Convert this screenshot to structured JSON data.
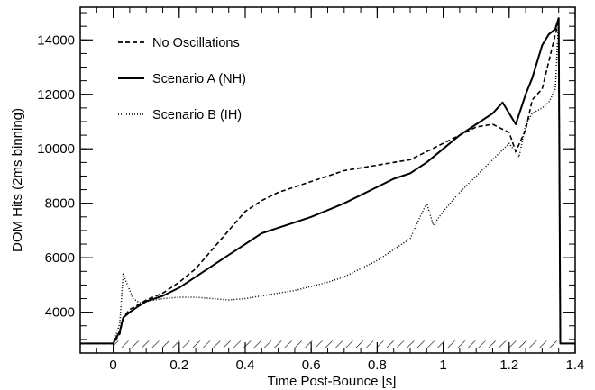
{
  "chart_data": {
    "type": "line",
    "xlabel": "Time Post-Bounce [s]",
    "ylabel": "DOM Hits (2ms binning)",
    "xlim": [
      -0.1,
      1.4
    ],
    "ylim": [
      2500,
      15200
    ],
    "x_ticks": [
      0,
      0.2,
      0.4,
      0.6,
      0.8,
      1,
      1.2,
      1.4
    ],
    "x_tick_labels": [
      "0",
      "0.2",
      "0.4",
      "0.6",
      "0.8",
      "1",
      "1.2",
      "1.4"
    ],
    "y_ticks": [
      4000,
      6000,
      8000,
      10000,
      12000,
      14000
    ],
    "y_tick_labels": [
      "4000",
      "6000",
      "8000",
      "10000",
      "12000",
      "14000"
    ],
    "grid": false,
    "legend_position": "top-left",
    "background_band": {
      "label": "",
      "y_range": [
        2700,
        2950
      ],
      "pattern": "diagonal-hatch"
    },
    "series": [
      {
        "name": "No Oscillations",
        "style": "dashed",
        "x": [
          -0.1,
          -0.05,
          0.0,
          0.02,
          0.03,
          0.05,
          0.08,
          0.1,
          0.15,
          0.2,
          0.25,
          0.3,
          0.35,
          0.4,
          0.45,
          0.5,
          0.55,
          0.6,
          0.65,
          0.7,
          0.75,
          0.8,
          0.85,
          0.9,
          0.95,
          1.0,
          1.05,
          1.1,
          1.15,
          1.2,
          1.22,
          1.25,
          1.27,
          1.3,
          1.32,
          1.34,
          1.35,
          1.355,
          1.4
        ],
        "y": [
          2850,
          2850,
          2850,
          3200,
          3800,
          4100,
          4300,
          4450,
          4700,
          5100,
          5600,
          6300,
          7000,
          7700,
          8100,
          8400,
          8600,
          8800,
          9000,
          9200,
          9300,
          9400,
          9500,
          9600,
          9900,
          10200,
          10500,
          10800,
          10900,
          10600,
          9900,
          10700,
          11800,
          12200,
          13200,
          14200,
          14700,
          2850,
          2850
        ]
      },
      {
        "name": "Scenario A (NH)",
        "style": "solid",
        "x": [
          -0.1,
          -0.05,
          0.0,
          0.02,
          0.03,
          0.05,
          0.08,
          0.1,
          0.15,
          0.2,
          0.25,
          0.3,
          0.35,
          0.4,
          0.45,
          0.5,
          0.55,
          0.6,
          0.65,
          0.7,
          0.75,
          0.8,
          0.85,
          0.9,
          0.95,
          1.0,
          1.05,
          1.1,
          1.15,
          1.18,
          1.2,
          1.22,
          1.25,
          1.27,
          1.3,
          1.32,
          1.34,
          1.35,
          1.355,
          1.4
        ],
        "y": [
          2850,
          2850,
          2850,
          3300,
          3800,
          4000,
          4250,
          4400,
          4600,
          4900,
          5300,
          5700,
          6100,
          6500,
          6900,
          7100,
          7300,
          7500,
          7750,
          8000,
          8300,
          8600,
          8900,
          9100,
          9500,
          10000,
          10500,
          10900,
          11300,
          11700,
          11300,
          10900,
          12000,
          12600,
          13800,
          14200,
          14400,
          14800,
          2850,
          2850
        ]
      },
      {
        "name": "Scenario B (IH)",
        "style": "dotted",
        "x": [
          -0.1,
          -0.05,
          0.0,
          0.02,
          0.03,
          0.04,
          0.06,
          0.08,
          0.1,
          0.15,
          0.2,
          0.25,
          0.3,
          0.35,
          0.4,
          0.45,
          0.5,
          0.55,
          0.6,
          0.65,
          0.7,
          0.75,
          0.8,
          0.85,
          0.9,
          0.93,
          0.95,
          0.97,
          1.0,
          1.05,
          1.1,
          1.15,
          1.2,
          1.23,
          1.25,
          1.27,
          1.3,
          1.32,
          1.34,
          1.35,
          1.355,
          1.4
        ],
        "y": [
          2850,
          2850,
          2850,
          3600,
          5400,
          5100,
          4500,
          4350,
          4400,
          4500,
          4550,
          4550,
          4500,
          4450,
          4500,
          4600,
          4700,
          4800,
          4950,
          5100,
          5300,
          5600,
          5900,
          6300,
          6700,
          7500,
          8000,
          7200,
          7700,
          8400,
          9000,
          9600,
          10200,
          9700,
          10900,
          11300,
          11500,
          11700,
          12200,
          14800,
          2850,
          2850
        ]
      }
    ]
  }
}
